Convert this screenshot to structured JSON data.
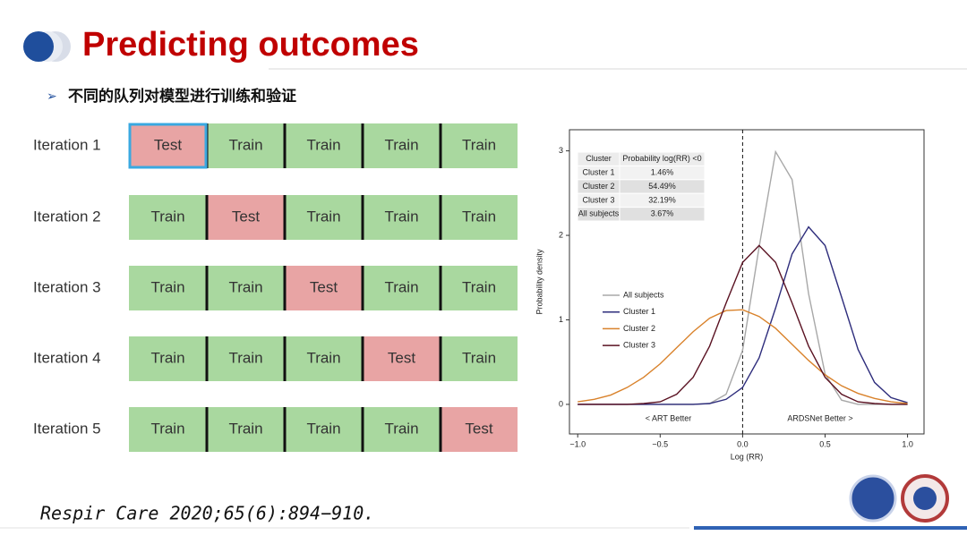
{
  "header": {
    "title": "Predicting outcomes",
    "subtitle": "不同的队列对模型进行训练和验证"
  },
  "cross_validation": {
    "rows": [
      {
        "label": "Iteration 1",
        "folds": [
          "Test",
          "Train",
          "Train",
          "Train",
          "Train"
        ]
      },
      {
        "label": "Iteration 2",
        "folds": [
          "Train",
          "Test",
          "Train",
          "Train",
          "Train"
        ]
      },
      {
        "label": "Iteration 3",
        "folds": [
          "Train",
          "Train",
          "Test",
          "Train",
          "Train"
        ]
      },
      {
        "label": "Iteration 4",
        "folds": [
          "Train",
          "Train",
          "Train",
          "Test",
          "Train"
        ]
      },
      {
        "label": "Iteration 5",
        "folds": [
          "Train",
          "Train",
          "Train",
          "Train",
          "Test"
        ]
      }
    ]
  },
  "chart_data": {
    "type": "line",
    "xlabel": "Log (RR)",
    "ylabel": "Probability density",
    "x": [
      -1.0,
      -0.9,
      -0.8,
      -0.7,
      -0.6,
      -0.5,
      -0.4,
      -0.3,
      -0.2,
      -0.1,
      0.0,
      0.1,
      0.2,
      0.3,
      0.4,
      0.5,
      0.6,
      0.7,
      0.8,
      0.9,
      1.0
    ],
    "series": [
      {
        "name": "All subjects",
        "color": "#a8a8a8",
        "values": [
          0,
          0,
          0,
          0,
          0,
          0,
          0,
          0,
          0.01,
          0.12,
          0.64,
          1.86,
          2.99,
          2.66,
          1.31,
          0.36,
          0.05,
          0,
          0,
          0,
          0
        ]
      },
      {
        "name": "Cluster 1",
        "color": "#2e2d7c",
        "values": [
          0,
          0,
          0,
          0,
          0,
          0,
          0,
          0,
          0.01,
          0.06,
          0.2,
          0.55,
          1.14,
          1.78,
          2.1,
          1.88,
          1.27,
          0.65,
          0.26,
          0.08,
          0.02
        ]
      },
      {
        "name": "Cluster 2",
        "color": "#d9822b",
        "values": [
          0.03,
          0.06,
          0.11,
          0.2,
          0.32,
          0.48,
          0.67,
          0.86,
          1.02,
          1.11,
          1.12,
          1.04,
          0.9,
          0.71,
          0.52,
          0.35,
          0.22,
          0.13,
          0.07,
          0.03,
          0.01
        ]
      },
      {
        "name": "Cluster 3",
        "color": "#5a1222",
        "values": [
          0,
          0,
          0,
          0,
          0.01,
          0.03,
          0.12,
          0.32,
          0.69,
          1.2,
          1.68,
          1.88,
          1.68,
          1.2,
          0.69,
          0.32,
          0.12,
          0.03,
          0.01,
          0,
          0
        ]
      }
    ],
    "xlim": [
      -1.05,
      1.1
    ],
    "ylim": [
      -0.35,
      3.25
    ],
    "xticks": [
      {
        "value": -1.0,
        "label": "−1.0"
      },
      {
        "value": -0.5,
        "label": "−0.5"
      },
      {
        "value": 0,
        "label": "0.0"
      },
      0.5,
      {
        "value": 1.0,
        "label": "1.0"
      }
    ],
    "yticks": [
      0,
      1,
      2,
      3
    ],
    "reference_line": 0,
    "annotations": [
      "< ART Better",
      "ARDSNet Better >"
    ],
    "legend_position": "center-left",
    "table": {
      "columns": [
        "Cluster",
        "Probability log(RR) <0"
      ],
      "rows": [
        [
          "Cluster 1",
          "1.46%"
        ],
        [
          "Cluster 2",
          "54.49%"
        ],
        [
          "Cluster 3",
          "32.19%"
        ],
        [
          "All subjects",
          "3.67%"
        ]
      ]
    }
  },
  "citation": "Respir Care 2020;65(6):894−910."
}
